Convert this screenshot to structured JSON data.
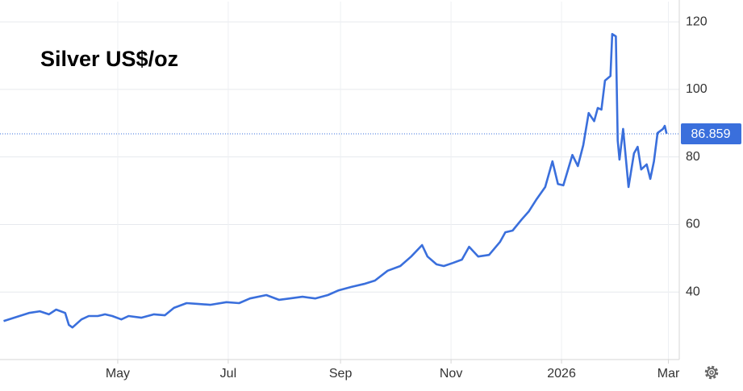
{
  "chart_data": {
    "type": "line",
    "title": "Silver US$/oz",
    "color": "#3a6fdc",
    "x": [
      -2,
      5,
      12,
      18,
      23,
      27,
      32,
      34,
      36,
      41,
      45,
      50,
      54,
      58,
      63,
      67,
      74,
      81,
      87,
      92,
      99,
      105,
      112,
      121,
      128,
      134,
      143,
      150,
      156,
      163,
      170,
      177,
      183,
      190,
      197,
      203,
      210,
      217,
      223,
      229,
      232,
      237,
      241,
      246,
      251,
      255,
      260,
      266,
      272,
      275,
      279,
      284,
      288,
      292,
      297,
      301,
      304,
      307,
      312,
      315,
      318,
      321,
      324,
      326,
      328,
      330,
      333,
      334,
      336,
      337,
      338,
      340,
      343,
      346,
      348,
      350,
      353,
      355,
      357,
      359,
      362,
      363,
      364
    ],
    "values": [
      31.4,
      32.6,
      33.8,
      34.3,
      33.4,
      34.8,
      33.8,
      30.3,
      29.5,
      31.9,
      32.9,
      32.9,
      33.4,
      32.9,
      31.9,
      32.9,
      32.4,
      33.4,
      33.1,
      35.3,
      36.7,
      36.5,
      36.2,
      37.0,
      36.7,
      38.1,
      39.1,
      37.7,
      38.1,
      38.6,
      38.1,
      39.1,
      40.5,
      41.5,
      42.4,
      43.4,
      46.3,
      47.7,
      50.5,
      53.9,
      50.5,
      48.2,
      47.7,
      48.6,
      49.6,
      53.4,
      50.5,
      51.0,
      54.8,
      57.7,
      58.2,
      61.5,
      63.9,
      67.3,
      71.1,
      78.7,
      72.0,
      71.6,
      80.6,
      77.3,
      83.5,
      93.0,
      90.6,
      94.5,
      94.0,
      102.6,
      104.0,
      116.4,
      115.7,
      84.9,
      79.2,
      88.3,
      71.1,
      81.1,
      83.0,
      76.3,
      77.8,
      73.5,
      78.7,
      87.1,
      88.3,
      89.2,
      86.859
    ],
    "xlim": [
      -4,
      371
    ],
    "xticks": [
      {
        "value": 61,
        "label": "May"
      },
      {
        "value": 122,
        "label": "Jul"
      },
      {
        "value": 184,
        "label": "Sep"
      },
      {
        "value": 245,
        "label": "Nov"
      },
      {
        "value": 306,
        "label": "2026"
      },
      {
        "value": 365,
        "label": "Mar"
      }
    ],
    "ylim": [
      20,
      126
    ],
    "yticks": [
      40,
      60,
      80,
      100,
      120
    ],
    "grid": true,
    "current_value": 86.859
  }
}
